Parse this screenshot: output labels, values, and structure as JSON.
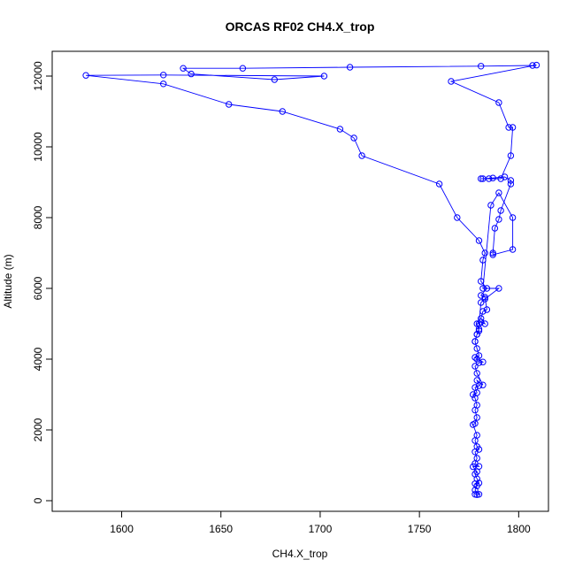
{
  "chart_data": {
    "type": "line",
    "title": "ORCAS RF02 CH4.X_trop",
    "xlabel": "CH4.X_trop",
    "ylabel": "Altitude (m)",
    "xlim": [
      1565,
      1815
    ],
    "ylim": [
      -300,
      12700
    ],
    "x_ticks": [
      1600,
      1650,
      1700,
      1750,
      1800
    ],
    "y_ticks": [
      0,
      2000,
      4000,
      6000,
      8000,
      10000,
      12000
    ],
    "grid": false,
    "legend": "none",
    "series_color": "#0000ff",
    "markers": "open-circle",
    "points": [
      [
        1778,
        180
      ],
      [
        1779,
        170
      ],
      [
        1780,
        180
      ],
      [
        1778,
        300
      ],
      [
        1779,
        420
      ],
      [
        1778,
        480
      ],
      [
        1780,
        500
      ],
      [
        1779,
        620
      ],
      [
        1778,
        750
      ],
      [
        1779,
        820
      ],
      [
        1777,
        960
      ],
      [
        1780,
        970
      ],
      [
        1778,
        1050
      ],
      [
        1779,
        1200
      ],
      [
        1778,
        1380
      ],
      [
        1780,
        1450
      ],
      [
        1779,
        1530
      ],
      [
        1778,
        1700
      ],
      [
        1779,
        1850
      ],
      [
        1777,
        2150
      ],
      [
        1778,
        2180
      ],
      [
        1779,
        2350
      ],
      [
        1778,
        2560
      ],
      [
        1779,
        2700
      ],
      [
        1778,
        2900
      ],
      [
        1777,
        3000
      ],
      [
        1779,
        3050
      ],
      [
        1778,
        3200
      ],
      [
        1780,
        3250
      ],
      [
        1779,
        3400
      ],
      [
        1782,
        3270
      ],
      [
        1779,
        3600
      ],
      [
        1778,
        3800
      ],
      [
        1780,
        3900
      ],
      [
        1782,
        3920
      ],
      [
        1779,
        4000
      ],
      [
        1778,
        4050
      ],
      [
        1780,
        4100
      ],
      [
        1779,
        4300
      ],
      [
        1778,
        4500
      ],
      [
        1779,
        4700
      ],
      [
        1780,
        4800
      ],
      [
        1779,
        5000
      ],
      [
        1781,
        5050
      ],
      [
        1783,
        5000
      ],
      [
        1781,
        5150
      ],
      [
        1782,
        5350
      ],
      [
        1784,
        5400
      ],
      [
        1783,
        5750
      ],
      [
        1781,
        5800
      ],
      [
        1784,
        6000
      ],
      [
        1781,
        6200
      ],
      [
        1782,
        6800
      ],
      [
        1783,
        7000
      ],
      [
        1780,
        7350
      ],
      [
        1769,
        8000
      ],
      [
        1760,
        8950
      ],
      [
        1721,
        9750
      ],
      [
        1717,
        10250
      ],
      [
        1710,
        10500
      ],
      [
        1681,
        11000
      ],
      [
        1654,
        11200
      ],
      [
        1621,
        11780
      ],
      [
        1582,
        12020
      ],
      [
        1621,
        12030
      ],
      [
        1702,
        12000
      ],
      [
        1677,
        11900
      ],
      [
        1635,
        12060
      ],
      [
        1631,
        12220
      ],
      [
        1661,
        12220
      ],
      [
        1715,
        12250
      ],
      [
        1781,
        12280
      ],
      [
        1807,
        12300
      ],
      [
        1809,
        12310
      ],
      [
        1766,
        11850
      ],
      [
        1790,
        11250
      ],
      [
        1795,
        10550
      ],
      [
        1797,
        10550
      ],
      [
        1796,
        9750
      ],
      [
        1791,
        9100
      ],
      [
        1785,
        9100
      ],
      [
        1781,
        9100
      ],
      [
        1782,
        9100
      ],
      [
        1787,
        9120
      ],
      [
        1793,
        9150
      ],
      [
        1796,
        9050
      ],
      [
        1796,
        8950
      ],
      [
        1791,
        8200
      ],
      [
        1790,
        7950
      ],
      [
        1788,
        7700
      ],
      [
        1787,
        7000
      ],
      [
        1787,
        6950
      ],
      [
        1797,
        7100
      ],
      [
        1797,
        8000
      ],
      [
        1790,
        8700
      ],
      [
        1786,
        8350
      ],
      [
        1782,
        6000
      ],
      [
        1790,
        6000
      ],
      [
        1783,
        5700
      ],
      [
        1781,
        5600
      ],
      [
        1780,
        5000
      ],
      [
        1780,
        4850
      ],
      [
        1779,
        4700
      ],
      [
        1778,
        4500
      ]
    ]
  }
}
